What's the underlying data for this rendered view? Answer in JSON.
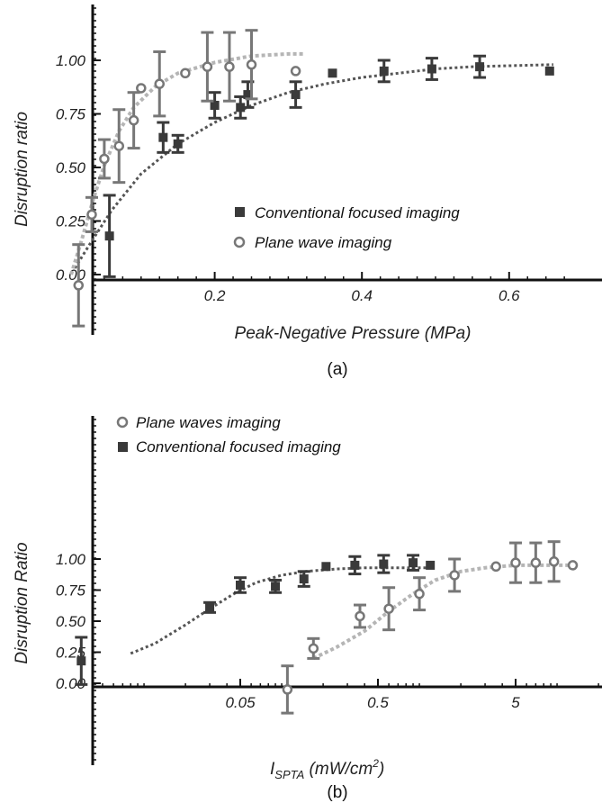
{
  "colors": {
    "conventional": "#3a3a3a",
    "plane_point": "#777777",
    "plane_fit": "#b5b5b5",
    "conventional_fit": "#555555",
    "axis": "#111111"
  },
  "chart_data": [
    {
      "type": "scatter",
      "panel_label": "(a)",
      "xlabel": "Peak-Negative Pressure (MPa)",
      "ylabel": "Disruption ratio",
      "xlim": [
        0,
        0.7
      ],
      "ylim": [
        -0.1,
        1.2
      ],
      "xticks": [
        {
          "v": 0.2,
          "label": "0.2"
        },
        {
          "v": 0.4,
          "label": "0.4"
        },
        {
          "v": 0.6,
          "label": "0.6"
        }
      ],
      "yticks": [
        {
          "v": 0,
          "label": "0.00"
        },
        {
          "v": 0.25,
          "label": "0.25"
        },
        {
          "v": 0.5,
          "label": "0.50"
        },
        {
          "v": 0.75,
          "label": "0.75"
        },
        {
          "v": 1.0,
          "label": "1.00"
        }
      ],
      "legend_position": "center-right",
      "legend": [
        "Conventional focused imaging",
        "Plane wave imaging"
      ],
      "series": [
        {
          "name": "Conventional focused imaging",
          "marker": "square",
          "points": [
            {
              "x": 0.057,
              "y": 0.18,
              "err": 0.19
            },
            {
              "x": 0.13,
              "y": 0.64,
              "err": 0.07
            },
            {
              "x": 0.15,
              "y": 0.61,
              "err": 0.04
            },
            {
              "x": 0.2,
              "y": 0.79,
              "err": 0.06
            },
            {
              "x": 0.235,
              "y": 0.78,
              "err": 0.05
            },
            {
              "x": 0.245,
              "y": 0.84,
              "err": 0.06
            },
            {
              "x": 0.31,
              "y": 0.84,
              "err": 0.06
            },
            {
              "x": 0.36,
              "y": 0.94,
              "err": 0
            },
            {
              "x": 0.43,
              "y": 0.95,
              "err": 0.05
            },
            {
              "x": 0.495,
              "y": 0.96,
              "err": 0.05
            },
            {
              "x": 0.56,
              "y": 0.97,
              "err": 0.05
            },
            {
              "x": 0.655,
              "y": 0.95,
              "err": 0
            }
          ],
          "fit": [
            [
              0.01,
              0.03
            ],
            [
              0.03,
              0.14
            ],
            [
              0.06,
              0.3
            ],
            [
              0.1,
              0.47
            ],
            [
              0.15,
              0.61
            ],
            [
              0.2,
              0.71
            ],
            [
              0.25,
              0.79
            ],
            [
              0.3,
              0.85
            ],
            [
              0.35,
              0.89
            ],
            [
              0.4,
              0.92
            ],
            [
              0.45,
              0.94
            ],
            [
              0.5,
              0.96
            ],
            [
              0.55,
              0.97
            ],
            [
              0.6,
              0.975
            ],
            [
              0.66,
              0.98
            ]
          ]
        },
        {
          "name": "Plane wave imaging",
          "marker": "circle",
          "points": [
            {
              "x": 0.015,
              "y": -0.05,
              "err": 0.19
            },
            {
              "x": 0.033,
              "y": 0.28,
              "err": 0.08
            },
            {
              "x": 0.05,
              "y": 0.54,
              "err": 0.09
            },
            {
              "x": 0.07,
              "y": 0.6,
              "err": 0.17
            },
            {
              "x": 0.09,
              "y": 0.72,
              "err": 0.13
            },
            {
              "x": 0.1,
              "y": 0.87,
              "err": 0
            },
            {
              "x": 0.125,
              "y": 0.89,
              "err": 0.15
            },
            {
              "x": 0.16,
              "y": 0.94,
              "err": 0
            },
            {
              "x": 0.19,
              "y": 0.97,
              "err": 0.16
            },
            {
              "x": 0.22,
              "y": 0.97,
              "err": 0.16
            },
            {
              "x": 0.25,
              "y": 0.98,
              "err": 0.16
            },
            {
              "x": 0.31,
              "y": 0.95,
              "err": 0
            }
          ],
          "fit": [
            [
              0.005,
              0.0
            ],
            [
              0.02,
              0.17
            ],
            [
              0.035,
              0.35
            ],
            [
              0.05,
              0.51
            ],
            [
              0.07,
              0.67
            ],
            [
              0.09,
              0.78
            ],
            [
              0.12,
              0.88
            ],
            [
              0.15,
              0.94
            ],
            [
              0.2,
              0.99
            ],
            [
              0.25,
              1.02
            ],
            [
              0.3,
              1.03
            ],
            [
              0.32,
              1.03
            ]
          ]
        }
      ]
    },
    {
      "type": "scatter",
      "panel_label": "(b)",
      "xlabel_main": "I",
      "xlabel_sub": "SPTA",
      "xlabel_unit_a": " (mW/cm",
      "xlabel_unit_sup": "2",
      "xlabel_unit_b": ")",
      "ylabel": "Disruption Ratio",
      "xscale": "log",
      "xlim": [
        0.003,
        12
      ],
      "ylim": [
        -0.1,
        1.2
      ],
      "xticks": [
        {
          "v": 0.05,
          "label": "0.05"
        },
        {
          "v": 0.5,
          "label": "0.5"
        },
        {
          "v": 5,
          "label": "5"
        }
      ],
      "yticks": [
        {
          "v": 0,
          "label": "0.00"
        },
        {
          "v": 0.25,
          "label": "0.25"
        },
        {
          "v": 0.5,
          "label": "0.50"
        },
        {
          "v": 0.75,
          "label": "0.75"
        },
        {
          "v": 1.0,
          "label": "1.00"
        }
      ],
      "legend_position": "top-left",
      "legend": [
        "Plane waves imaging",
        "Conventional focused imaging"
      ],
      "series": [
        {
          "name": "Plane waves imaging",
          "marker": "circle",
          "points": [
            {
              "x": 0.11,
              "y": -0.05,
              "err": 0.19
            },
            {
              "x": 0.17,
              "y": 0.28,
              "err": 0.08
            },
            {
              "x": 0.37,
              "y": 0.54,
              "err": 0.09
            },
            {
              "x": 0.6,
              "y": 0.6,
              "err": 0.17
            },
            {
              "x": 1.0,
              "y": 0.72,
              "err": 0.13
            },
            {
              "x": 1.8,
              "y": 0.87,
              "err": 0.13
            },
            {
              "x": 3.6,
              "y": 0.94,
              "err": 0
            },
            {
              "x": 5.0,
              "y": 0.97,
              "err": 0.16
            },
            {
              "x": 7.0,
              "y": 0.97,
              "err": 0.16
            },
            {
              "x": 9.5,
              "y": 0.98,
              "err": 0.16
            },
            {
              "x": 13,
              "y": 0.95,
              "err": 0
            }
          ],
          "fit": [
            [
              0.17,
              0.2
            ],
            [
              0.25,
              0.29
            ],
            [
              0.4,
              0.42
            ],
            [
              0.6,
              0.58
            ],
            [
              0.9,
              0.72
            ],
            [
              1.3,
              0.83
            ],
            [
              2.0,
              0.9
            ],
            [
              3.0,
              0.93
            ],
            [
              5.0,
              0.95
            ],
            [
              8.0,
              0.95
            ],
            [
              12,
              0.95
            ]
          ]
        },
        {
          "name": "Conventional focused imaging",
          "marker": "square",
          "points": [
            {
              "x": 0.0035,
              "y": 0.18,
              "err": 0.19
            },
            {
              "x": 0.03,
              "y": 0.61,
              "err": 0.04
            },
            {
              "x": 0.05,
              "y": 0.79,
              "err": 0.06
            },
            {
              "x": 0.09,
              "y": 0.78,
              "err": 0.05
            },
            {
              "x": 0.145,
              "y": 0.84,
              "err": 0.06
            },
            {
              "x": 0.21,
              "y": 0.94,
              "err": 0
            },
            {
              "x": 0.34,
              "y": 0.95,
              "err": 0.07
            },
            {
              "x": 0.55,
              "y": 0.96,
              "err": 0.07
            },
            {
              "x": 0.9,
              "y": 0.97,
              "err": 0.06
            },
            {
              "x": 1.2,
              "y": 0.95,
              "err": 0
            }
          ],
          "fit": [
            [
              0.008,
              0.24
            ],
            [
              0.012,
              0.32
            ],
            [
              0.02,
              0.47
            ],
            [
              0.03,
              0.6
            ],
            [
              0.045,
              0.72
            ],
            [
              0.065,
              0.81
            ],
            [
              0.1,
              0.87
            ],
            [
              0.15,
              0.9
            ],
            [
              0.25,
              0.92
            ],
            [
              0.4,
              0.93
            ],
            [
              0.7,
              0.93
            ],
            [
              1.2,
              0.93
            ]
          ]
        }
      ]
    }
  ]
}
